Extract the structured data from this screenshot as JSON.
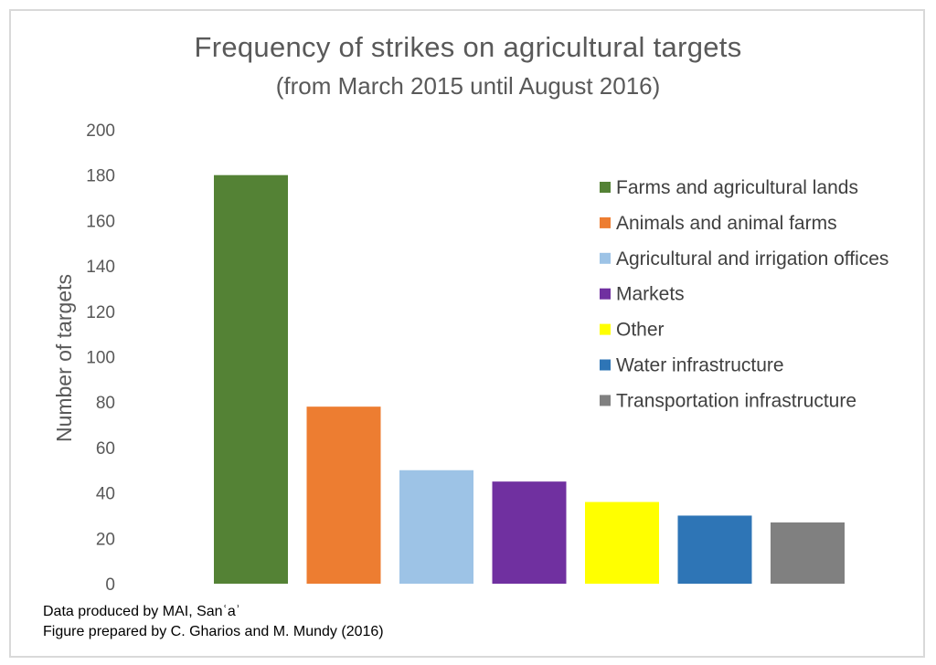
{
  "chart_data": {
    "type": "bar",
    "title": "Frequency of strikes on agricultural targets",
    "subtitle": "(from March 2015 until August 2016)",
    "ylabel": "Number of targets",
    "xlabel": "",
    "ylim": [
      0,
      200
    ],
    "yticks": [
      "0",
      "20",
      "40",
      "60",
      "80",
      "100",
      "120",
      "140",
      "160",
      "180",
      "200"
    ],
    "grid": false,
    "legend_position": "right",
    "series": [
      {
        "name": "Farms and agricultural lands",
        "value": 180,
        "color": "#548235"
      },
      {
        "name": "Animals and animal farms",
        "value": 78,
        "color": "#ed7d31"
      },
      {
        "name": "Agricultural and irrigation offices",
        "value": 50,
        "color": "#9dc3e6"
      },
      {
        "name": "Markets",
        "value": 45,
        "color": "#7030a0"
      },
      {
        "name": "Other",
        "value": 36,
        "color": "#ffff00"
      },
      {
        "name": "Water infrastructure",
        "value": 30,
        "color": "#2e75b6"
      },
      {
        "name": "Transportation infrastructure",
        "value": 27,
        "color": "#808080"
      }
    ]
  },
  "footnotes": {
    "line1": "Data produced by MAI, Sanʿaʾ",
    "line2": "Figure prepared by C. Gharios and M. Mundy (2016)"
  }
}
